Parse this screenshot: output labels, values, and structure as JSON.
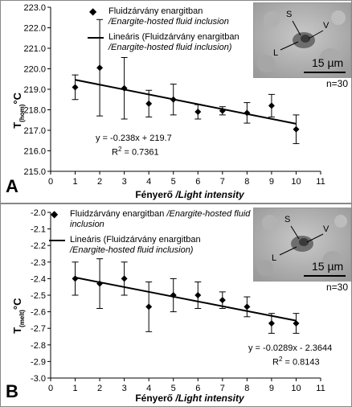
{
  "panels": [
    {
      "letter": "A",
      "legend_marker_label": "Fluidzárvány enargitban",
      "legend_marker_label_en": "/Enargite-hosted fluid inclusion",
      "legend_line_label": "Lineáris (Fluidzárvány enargitban",
      "legend_line_label_en": "/Enargite-hosted fluid inclusion)",
      "equation": "y = -0.238x + 219.7",
      "r2_prefix": "R",
      "r2_sup": "2",
      "r2_value": " = 0.7361",
      "xlabel": "Fényerő ",
      "xlabel_en": "/Light intensity",
      "ylabel_main": "T",
      "ylabel_sub": "(hom)",
      "ylabel_unit": "°C",
      "n_label": "n=30",
      "photo_labels": {
        "s": "S",
        "v": "V",
        "l": "L",
        "scale": "15 µm"
      },
      "yticks": [
        "215.0",
        "216.0",
        "217.0",
        "218.0",
        "219.0",
        "220.0",
        "221.0",
        "222.0",
        "223.0"
      ],
      "xticks": [
        "0",
        "1",
        "2",
        "3",
        "4",
        "5",
        "6",
        "7",
        "8",
        "9",
        "10",
        "11"
      ]
    },
    {
      "letter": "B",
      "legend_marker_label": "Fluidzárvány enargitban ",
      "legend_marker_label_en": "/Enargite-hosted fluid inclusion",
      "legend_line_label": "Lineáris (Fluidzárvány enargitban",
      "legend_line_label_en": "/Enargite-hosted fluid inclusion)",
      "equation": "y = -0.0289x - 2.3644",
      "r2_prefix": "R",
      "r2_sup": "2",
      "r2_value": " = 0.8143",
      "xlabel": "Fényerő ",
      "xlabel_en": "/Light intensity",
      "ylabel_main": "T",
      "ylabel_sub": "(melt)",
      "ylabel_unit": "°C",
      "n_label": "n=30",
      "photo_labels": {
        "s": "S",
        "v": "V",
        "l": "L",
        "scale": "15 µm"
      },
      "yticks": [
        "-3.0",
        "-2.9",
        "-2.8",
        "-2.7",
        "-2.6",
        "-2.5",
        "-2.4",
        "-2.3",
        "-2.2",
        "-2.1",
        "-2.0"
      ],
      "xticks": [
        "0",
        "1",
        "2",
        "3",
        "4",
        "5",
        "6",
        "7",
        "8",
        "9",
        "10",
        "11"
      ]
    }
  ],
  "chart_data": [
    {
      "type": "scatter",
      "x": [
        1,
        2,
        3,
        4,
        5,
        6,
        7,
        8,
        9,
        10
      ],
      "y": [
        219.1,
        220.05,
        219.05,
        218.3,
        218.5,
        217.9,
        217.95,
        217.85,
        218.2,
        217.05
      ],
      "y_err": [
        0.6,
        2.35,
        1.5,
        0.65,
        0.75,
        0.35,
        0.2,
        0.5,
        0.55,
        0.7
      ],
      "trendline": {
        "slope": -0.238,
        "intercept": 219.7,
        "r2": 0.7361
      },
      "xlim": [
        0,
        11
      ],
      "ylim": [
        215.0,
        223.0
      ],
      "grid": false,
      "legend": "top"
    },
    {
      "type": "scatter",
      "x": [
        1,
        2,
        3,
        4,
        5,
        6,
        7,
        8,
        9,
        10
      ],
      "y": [
        -2.4,
        -2.43,
        -2.4,
        -2.57,
        -2.5,
        -2.5,
        -2.53,
        -2.57,
        -2.67,
        -2.67
      ],
      "y_err": [
        0.1,
        0.15,
        0.1,
        0.15,
        0.1,
        0.08,
        0.05,
        0.06,
        0.06,
        0.06
      ],
      "trendline": {
        "slope": -0.0289,
        "intercept": -2.3644,
        "r2": 0.8143
      },
      "xlim": [
        0,
        11
      ],
      "ylim": [
        -3.0,
        -2.0
      ],
      "grid": false,
      "legend": "top"
    }
  ]
}
